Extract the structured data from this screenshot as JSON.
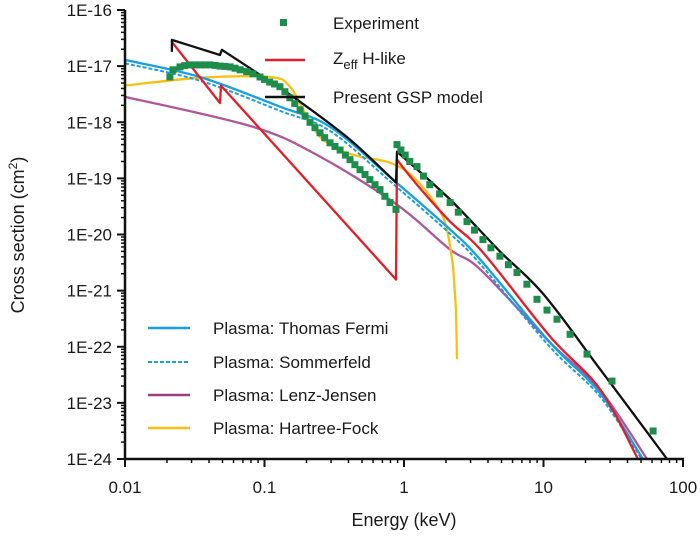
{
  "chart_data": {
    "type": "line",
    "title": "",
    "xlabel": "Energy (keV)",
    "ylabel_main": "Cross section (cm",
    "ylabel_sup": "2",
    "ylabel_end": ")",
    "xscale": "log",
    "yscale": "log",
    "xlim": [
      0.01,
      100
    ],
    "ylim": [
      1e-24,
      1e-16
    ],
    "grid": false,
    "x_ticks": [
      {
        "value": 0.01,
        "label": "0.01"
      },
      {
        "value": 0.1,
        "label": "0.1"
      },
      {
        "value": 1,
        "label": "1"
      },
      {
        "value": 10,
        "label": "10"
      },
      {
        "value": 100,
        "label": "100"
      }
    ],
    "y_ticks": [
      {
        "value": 1e-16,
        "label": "1E-16"
      },
      {
        "value": 1e-17,
        "label": "1E-17"
      },
      {
        "value": 1e-18,
        "label": "1E-18"
      },
      {
        "value": 1e-19,
        "label": "1E-19"
      },
      {
        "value": 1e-20,
        "label": "1E-20"
      },
      {
        "value": 1e-21,
        "label": "1E-21"
      },
      {
        "value": 1e-22,
        "label": "1E-22"
      },
      {
        "value": 1e-23,
        "label": "1E-23"
      },
      {
        "value": 1e-24,
        "label": "1E-24"
      }
    ],
    "legend_top": {
      "placement": "top-right",
      "experiment_label": "Experiment",
      "zeff_label_main": "Z",
      "zeff_label_sub": "eff",
      "zeff_label_rest": " H-like",
      "gsp_label": "Present GSP model"
    },
    "legend_bottom": {
      "placement": "bottom-left",
      "labels": [
        "Plasma: Thomas Fermi",
        "Plasma: Sommerfeld",
        "Plasma: Lenz-Jensen",
        "Plasma: Hartree-Fock"
      ]
    },
    "series": [
      {
        "key": "tf",
        "name": "Plasma: Thomas Fermi",
        "color": "#1a9ee0",
        "style": "solid",
        "points": [
          [
            0.01,
            1.29e-17
          ],
          [
            0.0345,
            6.4e-18
          ],
          [
            0.129,
            1.89e-18
          ],
          [
            0.295,
            8.3e-19
          ],
          [
            0.834,
            9.5e-20
          ],
          [
            2.14,
            1.23e-20
          ],
          [
            3.51,
            3.6e-21
          ],
          [
            11.1,
            1.2e-22
          ],
          [
            25.4,
            1.5e-23
          ],
          [
            51.6,
            1e-24
          ]
        ]
      },
      {
        "key": "sf",
        "name": "Plasma: Sommerfeld",
        "color": "#1a9ee0",
        "style": "dashed",
        "points": [
          [
            0.01,
            1.12e-17
          ],
          [
            0.0345,
            5.5e-18
          ],
          [
            0.129,
            1.6e-18
          ],
          [
            0.295,
            7e-19
          ],
          [
            0.834,
            8e-20
          ],
          [
            2.14,
            1.03e-20
          ],
          [
            3.51,
            3e-21
          ],
          [
            11.1,
            1e-22
          ],
          [
            25.4,
            1.3e-23
          ],
          [
            50.5,
            1e-24
          ]
        ]
      },
      {
        "key": "lj",
        "name": "Plasma: Lenz-Jensen",
        "color": "#b0569c",
        "style": "solid",
        "points": [
          [
            0.01,
            2.84e-18
          ],
          [
            0.0827,
            8.3e-19
          ],
          [
            0.25,
            2.44e-19
          ],
          [
            0.891,
            3.4e-20
          ],
          [
            2.14,
            5.4e-21
          ],
          [
            3.51,
            2.4e-21
          ],
          [
            11.1,
            1.2e-22
          ],
          [
            25.4,
            1.7e-23
          ],
          [
            55.2,
            1e-24
          ]
        ]
      },
      {
        "key": "hf",
        "name": "Plasma: Hartree-Fock",
        "color": "#fbbf10",
        "style": "solid",
        "points": [
          [
            0.01,
            4.5e-18
          ],
          [
            0.0345,
            6.2e-18
          ],
          [
            0.109,
            6.4e-18
          ],
          [
            0.152,
            4.3e-18
          ],
          [
            0.202,
            1.25e-18
          ],
          [
            0.25,
            5.5e-19
          ],
          [
            0.348,
            3.2e-19
          ],
          [
            0.484,
            2.44e-19
          ],
          [
            0.794,
            1.9e-19
          ],
          [
            1.16,
            1.07e-19
          ],
          [
            1.73,
            3.15e-20
          ],
          [
            2.03,
            1.23e-20
          ],
          [
            2.25,
            2.7e-21
          ],
          [
            2.36,
            4.6e-22
          ],
          [
            2.4,
            6e-23
          ]
        ]
      },
      {
        "key": "zeff",
        "name": "Zeff H-like",
        "color": "#e41e26",
        "style": "solid",
        "points": [
          [
            0.0217,
            2.7e-17
          ],
          [
            0.048,
            2.2e-18
          ],
          [
            0.0488,
            4.5e-18
          ],
          [
            0.877,
            1.58e-21
          ],
          [
            0.891,
            2.15e-19
          ],
          [
            1.24,
            7.7e-20
          ],
          [
            2.14,
            1.7e-20
          ],
          [
            3.68,
            4.8e-21
          ],
          [
            11.1,
            1.54e-22
          ],
          [
            25.4,
            1.75e-23
          ],
          [
            47.5,
            1e-24
          ]
        ]
      },
      {
        "key": "gsp",
        "name": "Present GSP model",
        "color": "#111111",
        "style": "solid",
        "points": [
          [
            0.0217,
            1.79e-17
          ],
          [
            0.0217,
            2.93e-17
          ],
          [
            0.048,
            1.58e-17
          ],
          [
            0.0495,
            1.95e-17
          ],
          [
            0.1,
            6.2e-18
          ],
          [
            0.18,
            2.31e-18
          ],
          [
            0.41,
            4.9e-19
          ],
          [
            0.877,
            8.4e-20
          ],
          [
            0.891,
            3e-19
          ],
          [
            2.14,
            4.2e-20
          ],
          [
            4.87,
            5e-21
          ],
          [
            10,
            8.6e-22
          ],
          [
            25.4,
            4e-23
          ],
          [
            76.8,
            1e-24
          ]
        ]
      }
    ],
    "experiment": {
      "name": "Experiment",
      "color": "#1e8c4a",
      "marker": "square",
      "points": [
        [
          0.021,
          6.4e-18
        ],
        [
          0.0221,
          8.6e-18
        ],
        [
          0.0248,
          9.7e-18
        ],
        [
          0.0268,
          1.02e-17
        ],
        [
          0.0292,
          1.05e-17
        ],
        [
          0.0318,
          1.05e-17
        ],
        [
          0.0345,
          1.05e-17
        ],
        [
          0.0375,
          1.05e-17
        ],
        [
          0.0407,
          1.05e-17
        ],
        [
          0.0442,
          1.03e-17
        ],
        [
          0.048,
          1e-17
        ],
        [
          0.052,
          9.9e-18
        ],
        [
          0.0566,
          9.7e-18
        ],
        [
          0.0615,
          9.2e-18
        ],
        [
          0.0668,
          8.6e-18
        ],
        [
          0.0745,
          8e-18
        ],
        [
          0.0827,
          7.3e-18
        ],
        [
          0.0929,
          6.4e-18
        ],
        [
          0.1,
          5.8e-18
        ],
        [
          0.109,
          5.2e-18
        ],
        [
          0.118,
          4.8e-18
        ],
        [
          0.129,
          4.3e-18
        ],
        [
          0.14,
          3.5e-18
        ],
        [
          0.152,
          2.73e-18
        ],
        [
          0.165,
          2.15e-18
        ],
        [
          0.18,
          1.67e-18
        ],
        [
          0.195,
          1.3e-18
        ],
        [
          0.212,
          1e-18
        ],
        [
          0.23,
          8e-19
        ],
        [
          0.25,
          6.5e-19
        ],
        [
          0.27,
          5.3e-19
        ],
        [
          0.295,
          4.3e-19
        ],
        [
          0.32,
          3.7e-19
        ],
        [
          0.348,
          3.2e-19
        ],
        [
          0.38,
          2.6e-19
        ],
        [
          0.41,
          2.15e-19
        ],
        [
          0.445,
          1.75e-19
        ],
        [
          0.484,
          1.43e-19
        ],
        [
          0.525,
          1.17e-19
        ],
        [
          0.57,
          9.5e-20
        ],
        [
          0.62,
          7.7e-20
        ],
        [
          0.673,
          6.3e-20
        ],
        [
          0.73,
          4.8e-20
        ],
        [
          0.794,
          3.7e-20
        ],
        [
          0.877,
          2.8e-20
        ],
        [
          0.891,
          4e-19
        ],
        [
          0.95,
          3.2e-19
        ],
        [
          1.02,
          2.6e-19
        ],
        [
          1.1,
          2e-19
        ],
        [
          1.24,
          1.62e-19
        ],
        [
          1.38,
          1.1e-19
        ],
        [
          1.53,
          7.7e-20
        ],
        [
          1.8,
          5.3e-20
        ],
        [
          2.14,
          3.7e-20
        ],
        [
          2.45,
          2.5e-20
        ],
        [
          2.83,
          1.7e-20
        ],
        [
          3.2,
          1.2e-20
        ],
        [
          3.68,
          8.1e-21
        ],
        [
          4.2,
          5.8e-21
        ],
        [
          4.87,
          4.1e-21
        ],
        [
          5.6,
          2.9e-21
        ],
        [
          6.46,
          2.1e-21
        ],
        [
          7.6,
          1.3e-21
        ],
        [
          8.98,
          7e-22
        ],
        [
          10.6,
          4.5e-22
        ],
        [
          12.5,
          3.1e-22
        ],
        [
          15.5,
          1.67e-22
        ],
        [
          20.5,
          7.4e-23
        ],
        [
          31.0,
          2.44e-23
        ],
        [
          61.0,
          3.15e-24
        ]
      ]
    }
  }
}
